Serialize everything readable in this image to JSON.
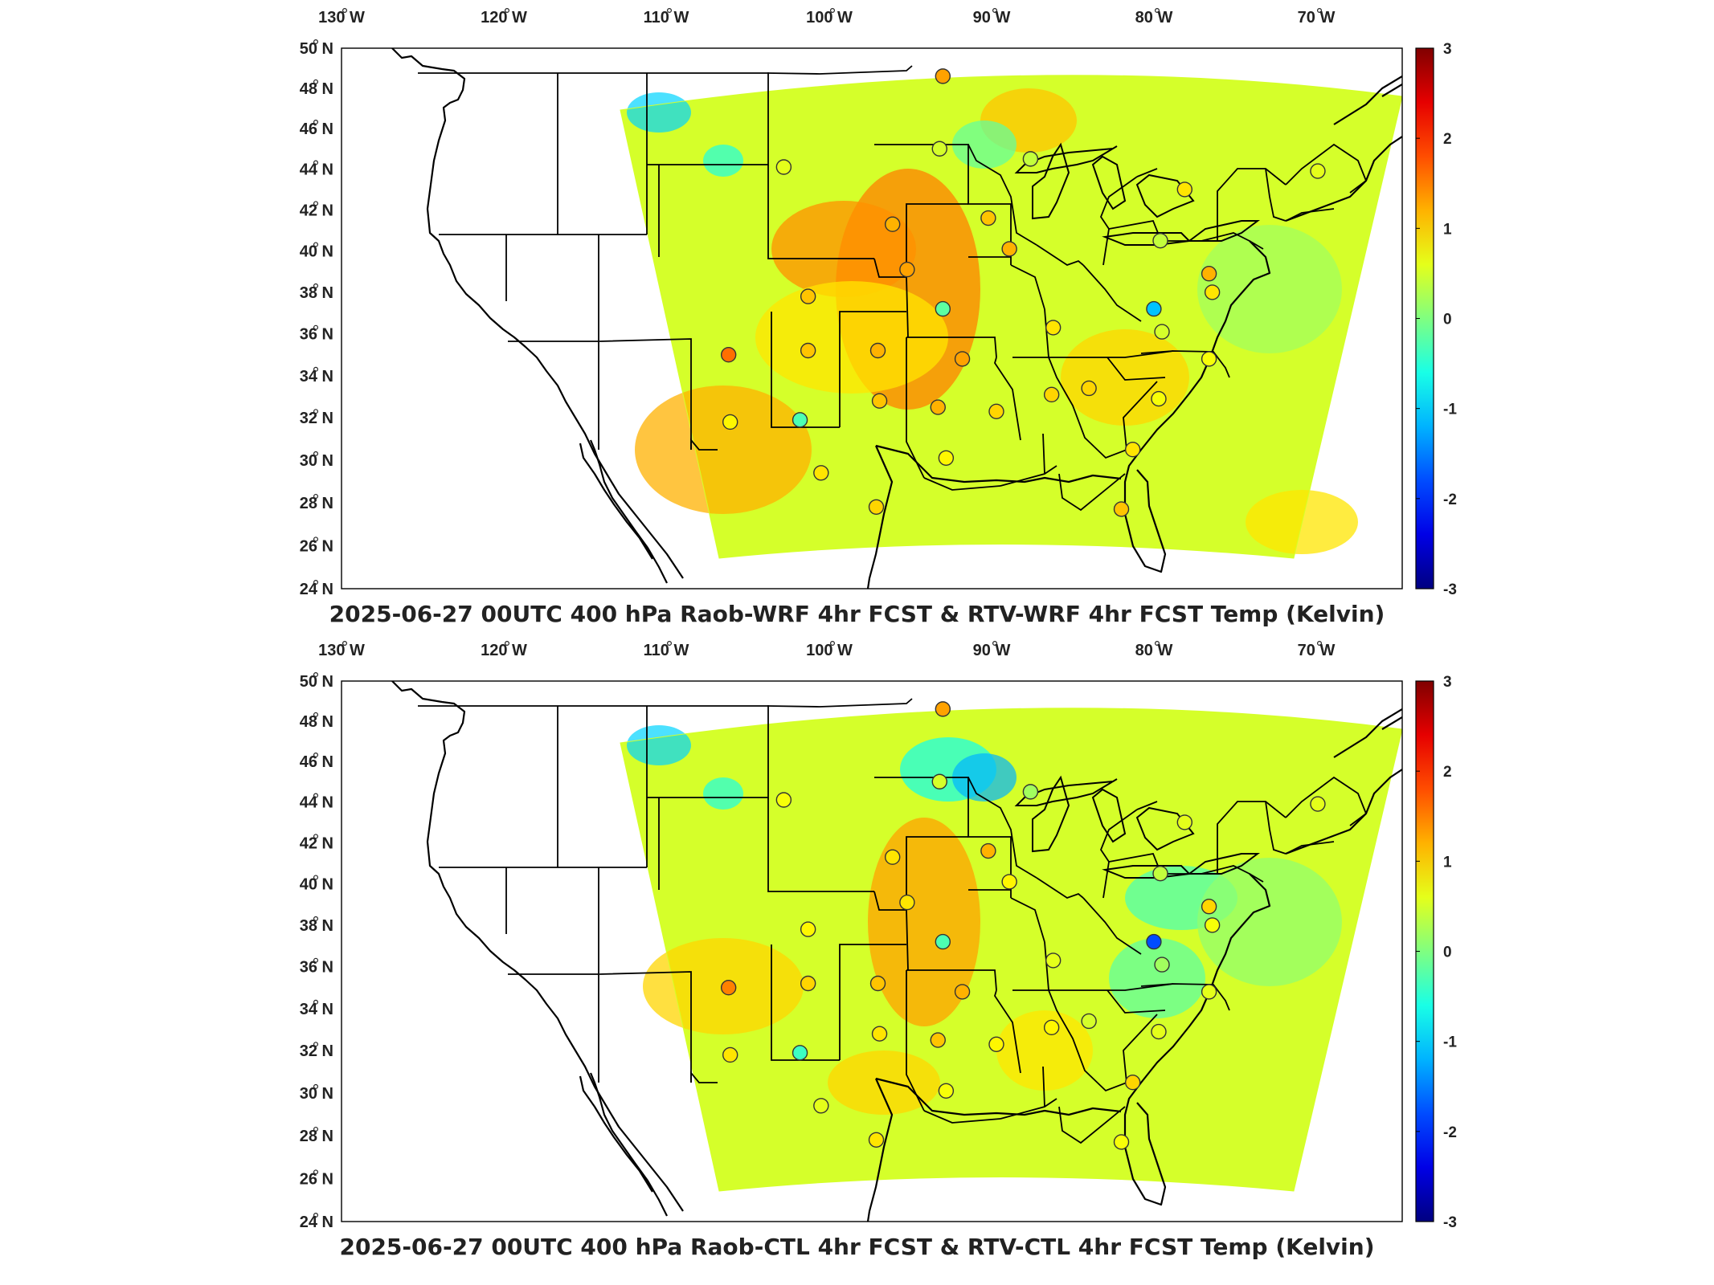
{
  "lon_labels": [
    "130",
    "120",
    "110",
    "100",
    "90",
    "80",
    "70"
  ],
  "lon_suffix": "W",
  "lat_labels": [
    "50",
    "48",
    "46",
    "44",
    "42",
    "40",
    "38",
    "36",
    "34",
    "32",
    "30",
    "28",
    "26",
    "24"
  ],
  "lat_suffix": "N",
  "colorbar": {
    "ticks": [
      "3",
      "2",
      "1",
      "0",
      "-1",
      "-2",
      "-3"
    ],
    "colormap": "jet",
    "colors": [
      "#00008f",
      "#0000ff",
      "#00ffff",
      "#ffff00",
      "#ff0000",
      "#800000"
    ]
  },
  "panels": [
    {
      "title": "2025-06-27 00UTC 400 hPa Raob-WRF 4hr FCST & RTV-WRF 4hr FCST Temp (Kelvin)",
      "stations": [
        {
          "lon": -93.4,
          "lat": 48.6,
          "value": 1.3
        },
        {
          "lon": -103.2,
          "lat": 44.1,
          "value": 0.6
        },
        {
          "lon": -93.6,
          "lat": 45.0,
          "value": 0.5
        },
        {
          "lon": -88.0,
          "lat": 44.5,
          "value": 0.4
        },
        {
          "lon": -78.5,
          "lat": 43.0,
          "value": 0.9
        },
        {
          "lon": -70.3,
          "lat": 43.9,
          "value": 0.6
        },
        {
          "lon": -96.5,
          "lat": 41.3,
          "value": 1.2
        },
        {
          "lon": -90.6,
          "lat": 41.6,
          "value": 1.1
        },
        {
          "lon": -89.3,
          "lat": 40.1,
          "value": 1.2
        },
        {
          "lon": -80.0,
          "lat": 40.5,
          "value": 0.4
        },
        {
          "lon": -95.6,
          "lat": 39.1,
          "value": 1.3
        },
        {
          "lon": -101.7,
          "lat": 37.8,
          "value": 1.1
        },
        {
          "lon": -93.4,
          "lat": 37.2,
          "value": -0.2
        },
        {
          "lon": -80.4,
          "lat": 37.2,
          "value": -1.1
        },
        {
          "lon": -77.0,
          "lat": 38.9,
          "value": 1.2
        },
        {
          "lon": -76.8,
          "lat": 38.0,
          "value": 0.9
        },
        {
          "lon": -86.6,
          "lat": 36.3,
          "value": 0.9
        },
        {
          "lon": -79.9,
          "lat": 36.1,
          "value": 0.5
        },
        {
          "lon": -77.0,
          "lat": 34.8,
          "value": 0.7
        },
        {
          "lon": -106.6,
          "lat": 35.0,
          "value": 1.6
        },
        {
          "lon": -101.7,
          "lat": 35.2,
          "value": 1.1
        },
        {
          "lon": -97.4,
          "lat": 35.2,
          "value": 1.2
        },
        {
          "lon": -92.2,
          "lat": 34.8,
          "value": 1.3
        },
        {
          "lon": -97.3,
          "lat": 32.8,
          "value": 1.1
        },
        {
          "lon": -93.7,
          "lat": 32.5,
          "value": 1.2
        },
        {
          "lon": -90.1,
          "lat": 32.3,
          "value": 1.0
        },
        {
          "lon": -86.7,
          "lat": 33.1,
          "value": 1.0
        },
        {
          "lon": -84.4,
          "lat": 33.4,
          "value": 1.0
        },
        {
          "lon": -80.1,
          "lat": 32.9,
          "value": 0.7
        },
        {
          "lon": -106.5,
          "lat": 31.8,
          "value": 0.8
        },
        {
          "lon": -102.2,
          "lat": 31.9,
          "value": -0.3
        },
        {
          "lon": -100.9,
          "lat": 29.4,
          "value": 0.9
        },
        {
          "lon": -97.5,
          "lat": 27.8,
          "value": 1.0
        },
        {
          "lon": -93.2,
          "lat": 30.1,
          "value": 0.8
        },
        {
          "lon": -81.7,
          "lat": 30.5,
          "value": 0.9
        },
        {
          "lon": -82.4,
          "lat": 27.7,
          "value": 1.1
        }
      ]
    },
    {
      "title": "2025-06-27 00UTC 400 hPa Raob-CTL 4hr FCST & RTV-CTL 4hr FCST Temp (Kelvin)",
      "stations": [
        {
          "lon": -93.4,
          "lat": 48.6,
          "value": 1.3
        },
        {
          "lon": -103.2,
          "lat": 44.1,
          "value": 0.7
        },
        {
          "lon": -93.6,
          "lat": 45.0,
          "value": 0.5
        },
        {
          "lon": -88.0,
          "lat": 44.5,
          "value": 0.2
        },
        {
          "lon": -78.5,
          "lat": 43.0,
          "value": 0.6
        },
        {
          "lon": -70.3,
          "lat": 43.9,
          "value": 0.6
        },
        {
          "lon": -96.5,
          "lat": 41.3,
          "value": 0.9
        },
        {
          "lon": -90.6,
          "lat": 41.6,
          "value": 1.2
        },
        {
          "lon": -89.3,
          "lat": 40.1,
          "value": 0.8
        },
        {
          "lon": -80.0,
          "lat": 40.5,
          "value": 0.4
        },
        {
          "lon": -95.6,
          "lat": 39.1,
          "value": 0.9
        },
        {
          "lon": -101.7,
          "lat": 37.8,
          "value": 0.8
        },
        {
          "lon": -93.4,
          "lat": 37.2,
          "value": -0.3
        },
        {
          "lon": -80.4,
          "lat": 37.2,
          "value": -1.8
        },
        {
          "lon": -77.0,
          "lat": 38.9,
          "value": 1.0
        },
        {
          "lon": -76.8,
          "lat": 38.0,
          "value": 0.7
        },
        {
          "lon": -86.6,
          "lat": 36.3,
          "value": 0.6
        },
        {
          "lon": -79.9,
          "lat": 36.1,
          "value": 0.2
        },
        {
          "lon": -77.0,
          "lat": 34.8,
          "value": 0.6
        },
        {
          "lon": -106.6,
          "lat": 35.0,
          "value": 1.5
        },
        {
          "lon": -101.7,
          "lat": 35.2,
          "value": 1.0
        },
        {
          "lon": -97.4,
          "lat": 35.2,
          "value": 1.1
        },
        {
          "lon": -92.2,
          "lat": 34.8,
          "value": 1.2
        },
        {
          "lon": -97.3,
          "lat": 32.8,
          "value": 0.9
        },
        {
          "lon": -93.7,
          "lat": 32.5,
          "value": 1.1
        },
        {
          "lon": -90.1,
          "lat": 32.3,
          "value": 0.8
        },
        {
          "lon": -86.7,
          "lat": 33.1,
          "value": 0.8
        },
        {
          "lon": -84.4,
          "lat": 33.4,
          "value": 0.5
        },
        {
          "lon": -80.1,
          "lat": 32.9,
          "value": 0.6
        },
        {
          "lon": -106.5,
          "lat": 31.8,
          "value": 0.9
        },
        {
          "lon": -102.2,
          "lat": 31.9,
          "value": -0.4
        },
        {
          "lon": -100.9,
          "lat": 29.4,
          "value": 0.6
        },
        {
          "lon": -97.5,
          "lat": 27.8,
          "value": 0.9
        },
        {
          "lon": -93.2,
          "lat": 30.1,
          "value": 0.7
        },
        {
          "lon": -81.7,
          "lat": 30.5,
          "value": 1.0
        },
        {
          "lon": -82.4,
          "lat": 27.7,
          "value": 0.7
        }
      ]
    }
  ]
}
